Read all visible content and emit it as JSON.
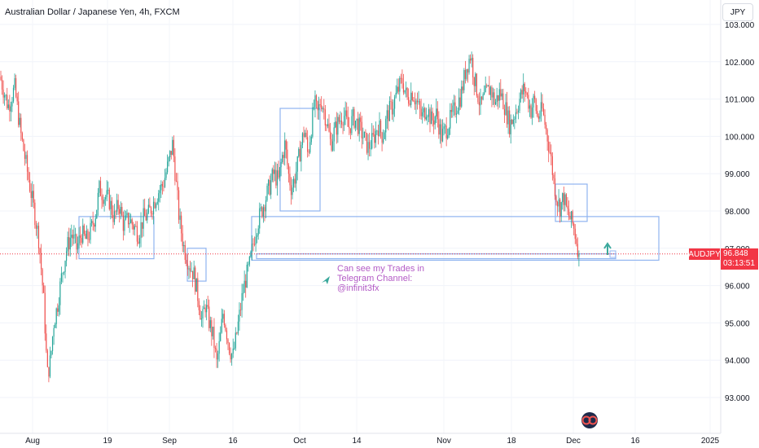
{
  "header": {
    "title": "Australian Dollar / Japanese Yen, 4h, FXCM",
    "currency_button": "JPY"
  },
  "annotation": {
    "lines": [
      "Can see my Trades in",
      "Telegram Channel:",
      "@infinit3fx"
    ]
  },
  "price_tag": {
    "symbol": "AUDJPY",
    "price": "96.848",
    "countdown": "03:13:51"
  },
  "colors": {
    "up": "#26a69a",
    "down": "#ef5350",
    "box": "#90b4f0",
    "note": "#b35bc6",
    "arrow": "#3aa89c",
    "price_line": "#f23645"
  },
  "chart_data": {
    "type": "candlestick",
    "y_ticks": [
      "103.000",
      "102.000",
      "101.000",
      "100.000",
      "99.000",
      "98.000",
      "97.000",
      "96.000",
      "95.000",
      "94.000",
      "93.000"
    ],
    "x_ticks": [
      "Aug",
      "19",
      "Sep",
      "16",
      "Oct",
      "14",
      "Nov",
      "18",
      "Dec",
      "16",
      "2025"
    ],
    "ylim": [
      92.3,
      103.2
    ],
    "last_price": 96.848,
    "path_points": [
      [
        0,
        101.6
      ],
      [
        10,
        100.8
      ],
      [
        18,
        101.3
      ],
      [
        26,
        100.0
      ],
      [
        34,
        99.0
      ],
      [
        42,
        98.0
      ],
      [
        48,
        97.2
      ],
      [
        54,
        95.5
      ],
      [
        58,
        93.6
      ],
      [
        62,
        94.0
      ],
      [
        66,
        95.0
      ],
      [
        70,
        95.4
      ],
      [
        76,
        96.3
      ],
      [
        82,
        97.0
      ],
      [
        88,
        97.4
      ],
      [
        94,
        97.0
      ],
      [
        100,
        97.4
      ],
      [
        106,
        97.2
      ],
      [
        112,
        97.5
      ],
      [
        118,
        98.0
      ],
      [
        122,
        98.6
      ],
      [
        128,
        98.4
      ],
      [
        134,
        98.3
      ],
      [
        140,
        97.8
      ],
      [
        146,
        98.2
      ],
      [
        152,
        97.6
      ],
      [
        158,
        97.8
      ],
      [
        164,
        97.6
      ],
      [
        170,
        97.4
      ],
      [
        176,
        97.8
      ],
      [
        182,
        97.9
      ],
      [
        188,
        98.2
      ],
      [
        194,
        98.5
      ],
      [
        200,
        98.7
      ],
      [
        206,
        99.2
      ],
      [
        212,
        99.8
      ],
      [
        216,
        98.8
      ],
      [
        220,
        97.8
      ],
      [
        226,
        97.0
      ],
      [
        232,
        96.6
      ],
      [
        238,
        96.3
      ],
      [
        244,
        95.6
      ],
      [
        248,
        95.0
      ],
      [
        252,
        95.5
      ],
      [
        256,
        95.1
      ],
      [
        262,
        94.6
      ],
      [
        266,
        93.9
      ],
      [
        270,
        94.5
      ],
      [
        274,
        95.3
      ],
      [
        278,
        94.8
      ],
      [
        282,
        94.3
      ],
      [
        286,
        94.1
      ],
      [
        290,
        94.6
      ],
      [
        294,
        95.2
      ],
      [
        298,
        95.8
      ],
      [
        302,
        96.2
      ],
      [
        306,
        96.5
      ],
      [
        310,
        97.0
      ],
      [
        314,
        97.5
      ],
      [
        318,
        97.8
      ],
      [
        324,
        98.2
      ],
      [
        330,
        98.6
      ],
      [
        336,
        99.0
      ],
      [
        342,
        98.8
      ],
      [
        346,
        99.4
      ],
      [
        350,
        99.8
      ],
      [
        354,
        99.0
      ],
      [
        358,
        98.6
      ],
      [
        362,
        98.9
      ],
      [
        366,
        99.3
      ],
      [
        370,
        99.8
      ],
      [
        374,
        100.2
      ],
      [
        378,
        99.5
      ],
      [
        382,
        100.2
      ],
      [
        386,
        100.9
      ],
      [
        390,
        100.6
      ],
      [
        394,
        101.0
      ],
      [
        398,
        100.7
      ],
      [
        402,
        100.3
      ],
      [
        406,
        99.8
      ],
      [
        410,
        100.1
      ],
      [
        416,
        100.4
      ],
      [
        422,
        100.6
      ],
      [
        428,
        100.2
      ],
      [
        434,
        100.5
      ],
      [
        440,
        100.3
      ],
      [
        446,
        100.0
      ],
      [
        452,
        99.7
      ],
      [
        458,
        99.9
      ],
      [
        464,
        100.3
      ],
      [
        470,
        100.0
      ],
      [
        476,
        100.6
      ],
      [
        482,
        100.8
      ],
      [
        488,
        101.2
      ],
      [
        494,
        101.5
      ],
      [
        500,
        101.0
      ],
      [
        506,
        101.2
      ],
      [
        512,
        100.9
      ],
      [
        518,
        100.5
      ],
      [
        524,
        100.8
      ],
      [
        530,
        100.4
      ],
      [
        536,
        100.6
      ],
      [
        542,
        100.0
      ],
      [
        548,
        100.2
      ],
      [
        554,
        100.5
      ],
      [
        560,
        100.8
      ],
      [
        566,
        101.1
      ],
      [
        572,
        101.8
      ],
      [
        578,
        102.2
      ],
      [
        582,
        101.6
      ],
      [
        586,
        101.2
      ],
      [
        590,
        100.8
      ],
      [
        596,
        101.1
      ],
      [
        602,
        101.3
      ],
      [
        608,
        100.9
      ],
      [
        614,
        101.2
      ],
      [
        620,
        100.8
      ],
      [
        626,
        100.3
      ],
      [
        632,
        100.6
      ],
      [
        638,
        101.0
      ],
      [
        644,
        101.3
      ],
      [
        648,
        101.0
      ],
      [
        652,
        100.7
      ],
      [
        656,
        101.0
      ],
      [
        660,
        100.5
      ],
      [
        666,
        100.7
      ],
      [
        672,
        100.0
      ],
      [
        676,
        99.5
      ],
      [
        680,
        98.8
      ],
      [
        684,
        98.3
      ],
      [
        688,
        98.1
      ],
      [
        692,
        98.4
      ],
      [
        696,
        98.0
      ],
      [
        700,
        97.8
      ],
      [
        704,
        97.6
      ],
      [
        708,
        97.2
      ],
      [
        711,
        96.85
      ]
    ],
    "boxes": [
      {
        "name": "zone-aug",
        "x0": 97,
        "x1": 189,
        "y0": 97.85,
        "y1": 96.72
      },
      {
        "name": "zone-sep-low",
        "x0": 230,
        "x1": 253,
        "y0": 97.0,
        "y1": 96.12
      },
      {
        "name": "zone-late-sep",
        "x0": 344,
        "x1": 393,
        "y0": 100.75,
        "y1": 98.0
      },
      {
        "name": "zone-nov-end",
        "x0": 682,
        "x1": 721,
        "y0": 98.72,
        "y1": 97.72
      },
      {
        "name": "zone-wide",
        "x0": 309,
        "x1": 809,
        "y0": 97.85,
        "y1": 96.68
      },
      {
        "name": "zone-thin",
        "x0": 315,
        "x1": 756,
        "y0": 96.85,
        "y1": 96.72
      }
    ]
  }
}
